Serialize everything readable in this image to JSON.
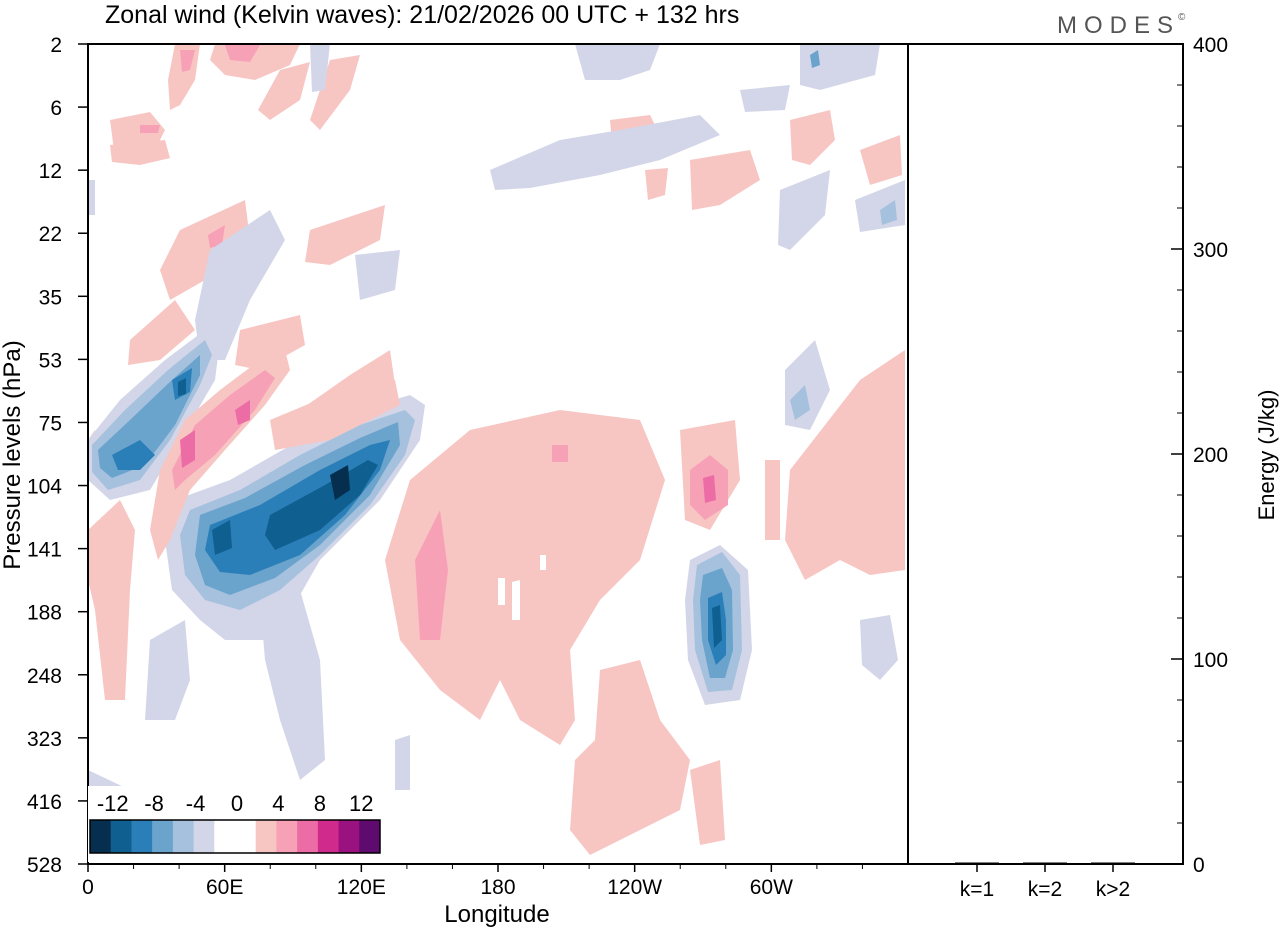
{
  "brand": "MODES",
  "brand_mark": "©",
  "chart_data": [
    {
      "type": "heatmap",
      "title": "Zonal wind (Kelvin waves):  21/02/2026  00 UTC  + 132 hrs",
      "xlabel": "Longitude",
      "ylabel": "Pressure levels (hPa)",
      "x_tick_labels": [
        "0",
        "60E",
        "120E",
        "180",
        "120W",
        "60W"
      ],
      "y_tick_labels": [
        "2",
        "6",
        "12",
        "22",
        "35",
        "53",
        "75",
        "104",
        "141",
        "188",
        "248",
        "323",
        "416",
        "528"
      ],
      "colorbar": {
        "labels": [
          "-12",
          "-8",
          "-4",
          "0",
          "4",
          "8",
          "12"
        ],
        "colors": [
          "#062e4f",
          "#0f5f90",
          "#2b7fb8",
          "#6aa3cc",
          "#a5c1dd",
          "#d3d6e8",
          "#ffffff",
          "#ffffff",
          "#f7c6c3",
          "#f7a1b7",
          "#ec6ca6",
          "#cf2a8c",
          "#9a1180",
          "#5e0a6e"
        ]
      },
      "features": [
        {
          "sign": "negative",
          "lon_range": [
            60,
            130
          ],
          "level_range": [
            75,
            188
          ],
          "peak": -14
        },
        {
          "sign": "negative",
          "lon_range": [
            0,
            50
          ],
          "level_range": [
            53,
            104
          ],
          "peak": -12
        },
        {
          "sign": "negative",
          "lon_range": [
            260,
            270
          ],
          "level_range": [
            141,
            248
          ],
          "peak": -12
        },
        {
          "sign": "positive",
          "lon_range": [
            30,
            80
          ],
          "level_range": [
            53,
            141
          ],
          "peak": 9
        },
        {
          "sign": "positive",
          "lon_range": [
            130,
            230
          ],
          "level_range": [
            75,
            528
          ],
          "peak": 6
        },
        {
          "sign": "positive",
          "lon_range": [
            260,
            275
          ],
          "level_range": [
            75,
            141
          ],
          "peak": 9
        }
      ]
    },
    {
      "type": "bar",
      "ylabel": "Energy (J/kg)",
      "ylim": [
        0,
        400
      ],
      "y_tick_labels": [
        "0",
        "100",
        "200",
        "300",
        "400"
      ],
      "categories": [
        "k=1",
        "k=2",
        "k>2"
      ],
      "values": [
        0.5,
        0.3,
        0.3
      ]
    }
  ]
}
